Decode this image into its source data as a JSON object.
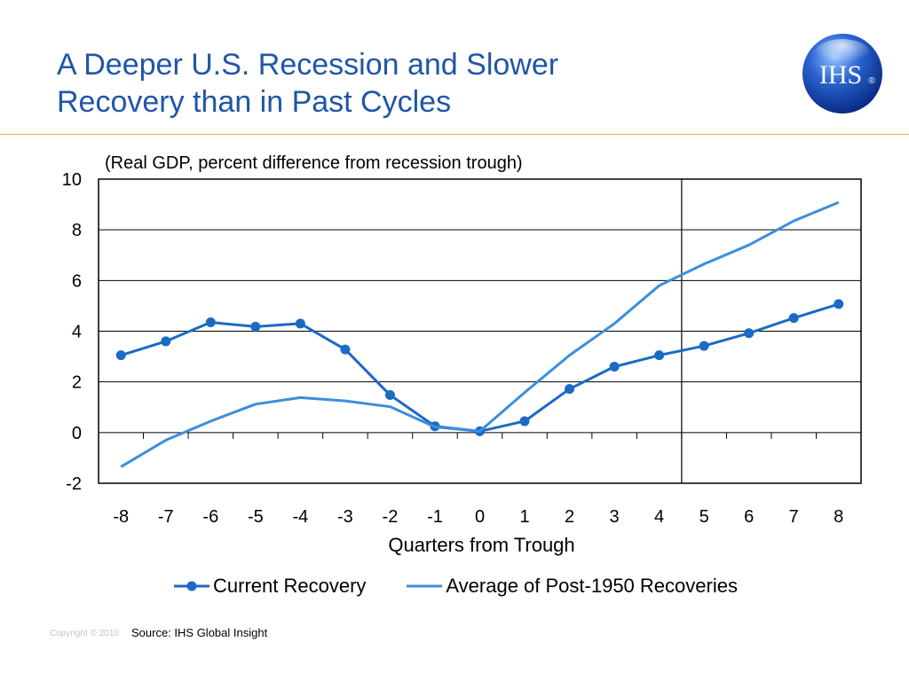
{
  "slide": {
    "title_line1": "A Deeper U.S. Recession and Slower",
    "title_line2": "Recovery than in Past Cycles",
    "title_color": "#1f56a8",
    "rule_color": "#e3b53b"
  },
  "logo": {
    "text": "IHS",
    "registered": "®"
  },
  "footer": {
    "source": "Source: IHS Global Insight",
    "copyright": "Copyright © 2010"
  },
  "chart_data": {
    "type": "line",
    "subtitle": "(Real GDP, percent difference from recession trough)",
    "xlabel": "Quarters from Trough",
    "ylabel": "",
    "x": [
      -8,
      -7,
      -6,
      -5,
      -4,
      -3,
      -2,
      -1,
      0,
      1,
      2,
      3,
      4,
      5,
      6,
      7,
      8
    ],
    "xlim": [
      -8,
      8
    ],
    "ylim": [
      -2,
      10
    ],
    "yticks": [
      -2,
      0,
      2,
      4,
      6,
      8,
      10
    ],
    "grid": true,
    "vline_x": 4.5,
    "legend_position": "bottom",
    "series": [
      {
        "name": "Current Recovery",
        "color": "#1a6ac6",
        "markers": true,
        "x": [
          -8,
          -7,
          -6,
          -5,
          -4,
          -3,
          -2,
          -1,
          0,
          1,
          2,
          3,
          4,
          5,
          6,
          7,
          8
        ],
        "values": [
          3.05,
          3.6,
          4.35,
          4.18,
          4.3,
          3.28,
          1.48,
          0.25,
          0.05,
          0.45,
          1.72,
          2.6,
          3.05,
          3.42,
          3.92,
          4.52,
          5.07
        ]
      },
      {
        "name": "Average of Post-1950 Recoveries",
        "color": "#3a8fdc",
        "markers": false,
        "x": [
          -8,
          -7,
          -6,
          -5,
          -4,
          -3,
          -2,
          -1,
          0,
          1,
          2,
          3,
          4,
          5,
          6,
          7,
          8
        ],
        "values": [
          -1.35,
          -0.3,
          0.45,
          1.12,
          1.38,
          1.25,
          1.02,
          0.22,
          0.05,
          1.58,
          3.05,
          4.3,
          5.8,
          6.65,
          7.4,
          8.35,
          9.08
        ]
      }
    ]
  }
}
